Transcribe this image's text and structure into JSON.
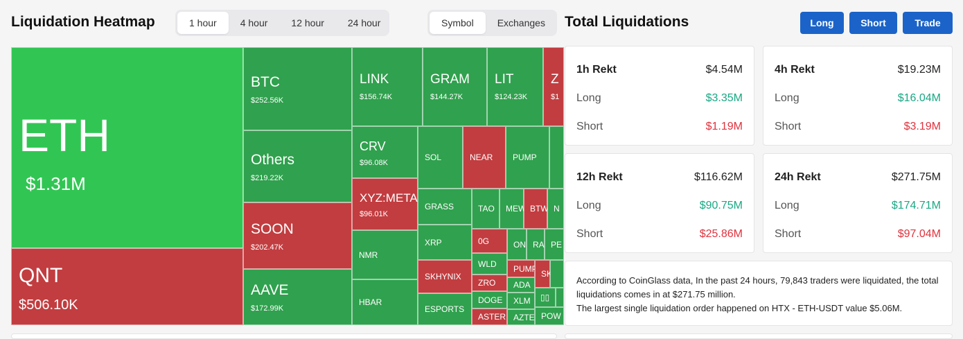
{
  "heatmap": {
    "title": "Liquidation Heatmap",
    "time_tabs": [
      "1 hour",
      "4 hour",
      "12 hour",
      "24 hour"
    ],
    "active_time": "1 hour",
    "mode_tabs": [
      "Symbol",
      "Exchanges"
    ],
    "active_mode": "Symbol",
    "tiles": [
      {
        "symbol": "ETH",
        "value": "$1.31M",
        "side": "long"
      },
      {
        "symbol": "QNT",
        "value": "$506.10K",
        "side": "short"
      },
      {
        "symbol": "BTC",
        "value": "$252.56K",
        "side": "long"
      },
      {
        "symbol": "Others",
        "value": "$219.22K",
        "side": "long"
      },
      {
        "symbol": "SOON",
        "value": "$202.47K",
        "side": "short"
      },
      {
        "symbol": "AAVE",
        "value": "$172.99K",
        "side": "long"
      },
      {
        "symbol": "LINK",
        "value": "$156.74K",
        "side": "long"
      },
      {
        "symbol": "GRAM",
        "value": "$144.27K",
        "side": "long"
      },
      {
        "symbol": "LIT",
        "value": "$124.23K",
        "side": "long"
      },
      {
        "symbol": "Z",
        "value": "$1",
        "side": "short"
      },
      {
        "symbol": "CRV",
        "value": "$96.08K",
        "side": "long"
      },
      {
        "symbol": "XYZ:META",
        "value": "$96.01K",
        "side": "short"
      },
      {
        "symbol": "SOL",
        "side": "long"
      },
      {
        "symbol": "NEAR",
        "side": "short"
      },
      {
        "symbol": "PUMP",
        "side": "long"
      },
      {
        "symbol": "GRASS",
        "side": "long"
      },
      {
        "symbol": "TAO",
        "side": "long"
      },
      {
        "symbol": "MEW",
        "side": "long"
      },
      {
        "symbol": "BTW",
        "side": "short"
      },
      {
        "symbol": "N",
        "side": "long"
      },
      {
        "symbol": "NMR",
        "side": "long"
      },
      {
        "symbol": "XRP",
        "side": "long"
      },
      {
        "symbol": "0G",
        "side": "short"
      },
      {
        "symbol": "ON",
        "side": "long"
      },
      {
        "symbol": "RA",
        "side": "long"
      },
      {
        "symbol": "PE",
        "side": "long"
      },
      {
        "symbol": "WLD",
        "side": "long"
      },
      {
        "symbol": "PUMP",
        "side": "short"
      },
      {
        "symbol": "SK",
        "side": "short"
      },
      {
        "symbol": "SKHYNIX",
        "side": "short"
      },
      {
        "symbol": "ZRO",
        "side": "short"
      },
      {
        "symbol": "ADA",
        "side": "long"
      },
      {
        "symbol": "HBAR",
        "side": "long"
      },
      {
        "symbol": "DOGE",
        "side": "long"
      },
      {
        "symbol": "XLM",
        "side": "long"
      },
      {
        "symbol": "▯▯",
        "side": "long"
      },
      {
        "symbol": "ESPORTS",
        "side": "long"
      },
      {
        "symbol": "ASTER",
        "side": "short"
      },
      {
        "symbol": "AZTE",
        "side": "long"
      },
      {
        "symbol": "POW",
        "side": "long"
      }
    ]
  },
  "totals": {
    "title": "Total Liquidations",
    "buttons": {
      "long": "Long",
      "short": "Short",
      "trade": "Trade"
    },
    "long_label": "Long",
    "short_label": "Short",
    "cards": [
      {
        "label": "1h Rekt",
        "total": "$4.54M",
        "long": "$3.35M",
        "short": "$1.19M"
      },
      {
        "label": "4h Rekt",
        "total": "$19.23M",
        "long": "$16.04M",
        "short": "$3.19M"
      },
      {
        "label": "12h Rekt",
        "total": "$116.62M",
        "long": "$90.75M",
        "short": "$25.86M"
      },
      {
        "label": "24h Rekt",
        "total": "$271.75M",
        "long": "$174.71M",
        "short": "$97.04M"
      }
    ],
    "summary_line1": "According to CoinGlass data, In the past 24 hours, 79,843 traders were liquidated, the total liquidations comes in at $271.75 million.",
    "summary_line2": "The largest single liquidation order happened on HTX - ETH-USDT value $5.06M."
  },
  "colors": {
    "long": "#30a14e",
    "long_big": "#31c653",
    "short": "#c23d40",
    "accent": "#1b63c8"
  }
}
